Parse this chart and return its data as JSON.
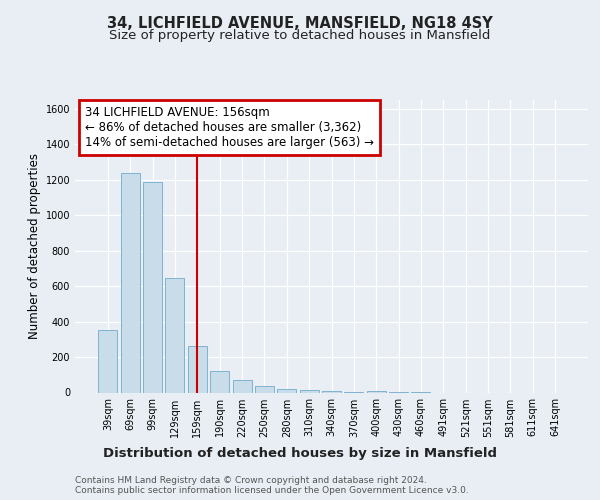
{
  "title1": "34, LICHFIELD AVENUE, MANSFIELD, NG18 4SY",
  "title2": "Size of property relative to detached houses in Mansfield",
  "xlabel": "Distribution of detached houses by size in Mansfield",
  "ylabel": "Number of detached properties",
  "categories": [
    "39sqm",
    "69sqm",
    "99sqm",
    "129sqm",
    "159sqm",
    "190sqm",
    "220sqm",
    "250sqm",
    "280sqm",
    "310sqm",
    "340sqm",
    "370sqm",
    "400sqm",
    "430sqm",
    "460sqm",
    "491sqm",
    "521sqm",
    "551sqm",
    "581sqm",
    "611sqm",
    "641sqm"
  ],
  "values": [
    355,
    1240,
    1190,
    645,
    260,
    120,
    70,
    38,
    22,
    15,
    8,
    5,
    10,
    4,
    1,
    0,
    0,
    0,
    0,
    0,
    0
  ],
  "bar_color": "#c8dcea",
  "bar_edge_color": "#7fb3d3",
  "reference_line_x": 4,
  "reference_line_color": "#cc0000",
  "annotation_text_line1": "34 LICHFIELD AVENUE: 156sqm",
  "annotation_text_line2": "← 86% of detached houses are smaller (3,362)",
  "annotation_text_line3": "14% of semi-detached houses are larger (563) →",
  "annotation_box_color": "#ffffff",
  "annotation_border_color": "#cc0000",
  "ylim": [
    0,
    1650
  ],
  "yticks": [
    0,
    200,
    400,
    600,
    800,
    1000,
    1200,
    1400,
    1600
  ],
  "footer1": "Contains HM Land Registry data © Crown copyright and database right 2024.",
  "footer2": "Contains public sector information licensed under the Open Government Licence v3.0.",
  "bg_color": "#e8eef4",
  "plot_bg_color": "#e8eef4",
  "grid_color": "#ffffff",
  "title1_fontsize": 10.5,
  "title2_fontsize": 9.5,
  "ylabel_fontsize": 8.5,
  "xlabel_fontsize": 9.5,
  "tick_fontsize": 7,
  "annotation_fontsize": 8.5,
  "footer_fontsize": 6.5
}
